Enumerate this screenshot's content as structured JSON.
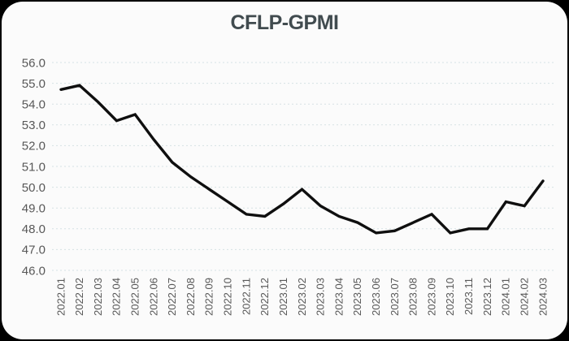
{
  "window": {
    "title": "CFLP-GPMI"
  },
  "chart_data": {
    "type": "line",
    "title": "CFLP-GPMI",
    "xlabel": "",
    "ylabel": "",
    "legend": "none",
    "grid": "horizontal-dashed",
    "ylim": [
      46.0,
      56.0
    ],
    "ytick_step": 1.0,
    "ytick_labels": [
      "56.0",
      "55.0",
      "54.0",
      "53.0",
      "52.0",
      "51.0",
      "50.0",
      "49.0",
      "48.0",
      "47.0",
      "46.0"
    ],
    "x": [
      "2022.01",
      "2022.02",
      "2022.03",
      "2022.04",
      "2022.05",
      "2022.06",
      "2022.07",
      "2022.08",
      "2022.09",
      "2022.10",
      "2022.11",
      "2022.12",
      "2023.01",
      "2023.02",
      "2023.03",
      "2023.04",
      "2023.05",
      "2023.06",
      "2023.07",
      "2023.08",
      "2023.09",
      "2023.10",
      "2023.11",
      "2023.12",
      "2024.01",
      "2024.02",
      "2024.03"
    ],
    "series": [
      {
        "name": "CFLP-GPMI",
        "values": [
          54.7,
          54.9,
          54.1,
          53.2,
          53.5,
          52.3,
          51.2,
          50.5,
          49.9,
          49.3,
          48.7,
          48.6,
          49.2,
          49.9,
          49.1,
          48.6,
          48.3,
          47.8,
          47.9,
          48.3,
          48.7,
          47.8,
          48.0,
          48.0,
          49.3,
          49.1,
          50.3
        ]
      }
    ],
    "colors": {
      "line": "#0f0f0f",
      "grid": "#d6e2e4",
      "axis_text": "#585858",
      "title_text": "#414b4f",
      "card_background": "#fbfbfb",
      "outer_frame": "#000000"
    }
  }
}
